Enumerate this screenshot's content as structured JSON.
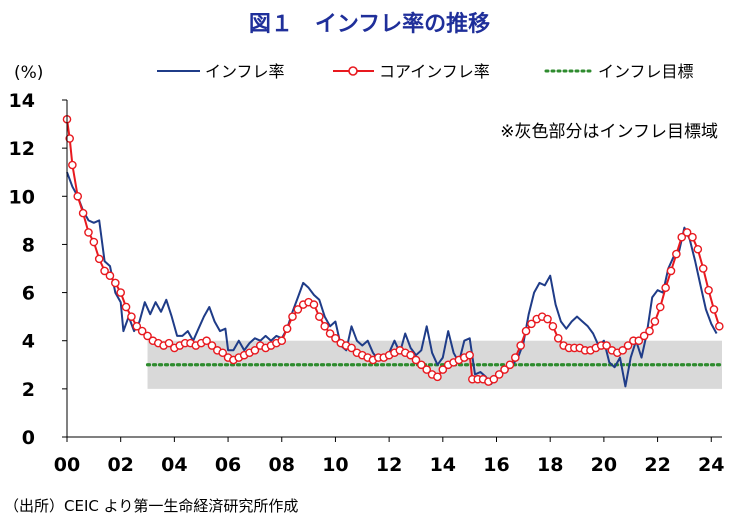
{
  "title": "図１　インフレ率の推移",
  "source": "（出所）CEIC より第一生命経済研究所作成",
  "note": "※灰色部分はインフレ目標域",
  "colors": {
    "headline": "#1f3c88",
    "core": "#e8191f",
    "target": "#2e8b2e",
    "band": "#d9d9d9",
    "title": "#1f2f9a"
  },
  "chart_data": {
    "type": "line",
    "ylabel": "(%)",
    "ylim": [
      0,
      14
    ],
    "yticks": [
      0,
      2,
      4,
      6,
      8,
      10,
      12,
      14
    ],
    "xlim": [
      2000,
      2024.4
    ],
    "xticks": [
      {
        "x": 2000,
        "label": "00"
      },
      {
        "x": 2002,
        "label": "02"
      },
      {
        "x": 2004,
        "label": "04"
      },
      {
        "x": 2006,
        "label": "06"
      },
      {
        "x": 2008,
        "label": "08"
      },
      {
        "x": 2010,
        "label": "10"
      },
      {
        "x": 2012,
        "label": "12"
      },
      {
        "x": 2014,
        "label": "14"
      },
      {
        "x": 2016,
        "label": "16"
      },
      {
        "x": 2018,
        "label": "18"
      },
      {
        "x": 2020,
        "label": "20"
      },
      {
        "x": 2022,
        "label": "22"
      },
      {
        "x": 2024,
        "label": "24"
      }
    ],
    "target_band": {
      "from": 2003.0,
      "to": 2024.4,
      "low": 2,
      "high": 4
    },
    "target_line": {
      "from": 2003.0,
      "to": 2024.4,
      "value": 3
    },
    "legend": [
      "インフレ率",
      "コアインフレ率",
      "インフレ目標"
    ],
    "series": [
      {
        "name": "インフレ率",
        "style": "line",
        "points": [
          [
            2000.0,
            11.0
          ],
          [
            2000.2,
            10.4
          ],
          [
            2000.4,
            10.0
          ],
          [
            2000.6,
            9.4
          ],
          [
            2000.8,
            9.0
          ],
          [
            2001.0,
            8.9
          ],
          [
            2001.2,
            9.0
          ],
          [
            2001.4,
            7.3
          ],
          [
            2001.6,
            7.1
          ],
          [
            2001.8,
            6.0
          ],
          [
            2002.0,
            5.6
          ],
          [
            2002.1,
            4.4
          ],
          [
            2002.3,
            5.0
          ],
          [
            2002.5,
            4.4
          ],
          [
            2002.7,
            4.8
          ],
          [
            2002.9,
            5.6
          ],
          [
            2003.1,
            5.1
          ],
          [
            2003.3,
            5.6
          ],
          [
            2003.5,
            5.2
          ],
          [
            2003.7,
            5.7
          ],
          [
            2003.9,
            5.0
          ],
          [
            2004.1,
            4.2
          ],
          [
            2004.3,
            4.2
          ],
          [
            2004.5,
            4.4
          ],
          [
            2004.7,
            4.0
          ],
          [
            2004.9,
            4.5
          ],
          [
            2005.1,
            5.0
          ],
          [
            2005.3,
            5.4
          ],
          [
            2005.5,
            4.8
          ],
          [
            2005.7,
            4.4
          ],
          [
            2005.9,
            4.5
          ],
          [
            2006.0,
            3.6
          ],
          [
            2006.2,
            3.6
          ],
          [
            2006.4,
            4.0
          ],
          [
            2006.6,
            3.6
          ],
          [
            2006.8,
            3.9
          ],
          [
            2007.0,
            4.1
          ],
          [
            2007.2,
            4.0
          ],
          [
            2007.4,
            4.2
          ],
          [
            2007.6,
            4.0
          ],
          [
            2007.8,
            4.2
          ],
          [
            2008.0,
            4.1
          ],
          [
            2008.2,
            4.5
          ],
          [
            2008.4,
            5.2
          ],
          [
            2008.6,
            5.8
          ],
          [
            2008.8,
            6.4
          ],
          [
            2009.0,
            6.2
          ],
          [
            2009.2,
            5.9
          ],
          [
            2009.4,
            5.7
          ],
          [
            2009.6,
            5.0
          ],
          [
            2009.8,
            4.6
          ],
          [
            2010.0,
            4.8
          ],
          [
            2010.2,
            3.8
          ],
          [
            2010.4,
            3.6
          ],
          [
            2010.6,
            4.6
          ],
          [
            2010.8,
            4.0
          ],
          [
            2011.0,
            3.8
          ],
          [
            2011.2,
            4.0
          ],
          [
            2011.4,
            3.5
          ],
          [
            2011.6,
            3.2
          ],
          [
            2011.8,
            3.3
          ],
          [
            2012.0,
            3.5
          ],
          [
            2012.2,
            4.0
          ],
          [
            2012.4,
            3.5
          ],
          [
            2012.6,
            4.3
          ],
          [
            2012.8,
            3.7
          ],
          [
            2013.0,
            3.4
          ],
          [
            2013.2,
            3.6
          ],
          [
            2013.4,
            4.6
          ],
          [
            2013.6,
            3.5
          ],
          [
            2013.8,
            3.0
          ],
          [
            2014.0,
            3.3
          ],
          [
            2014.2,
            4.4
          ],
          [
            2014.4,
            3.5
          ],
          [
            2014.6,
            3.1
          ],
          [
            2014.8,
            4.0
          ],
          [
            2015.0,
            4.1
          ],
          [
            2015.2,
            2.6
          ],
          [
            2015.4,
            2.7
          ],
          [
            2015.6,
            2.5
          ],
          [
            2015.8,
            2.2
          ],
          [
            2016.0,
            2.5
          ],
          [
            2016.2,
            2.7
          ],
          [
            2016.4,
            2.8
          ],
          [
            2016.6,
            3.0
          ],
          [
            2016.8,
            3.3
          ],
          [
            2017.0,
            3.9
          ],
          [
            2017.2,
            5.1
          ],
          [
            2017.4,
            6.0
          ],
          [
            2017.6,
            6.4
          ],
          [
            2017.8,
            6.3
          ],
          [
            2018.0,
            6.7
          ],
          [
            2018.2,
            5.5
          ],
          [
            2018.4,
            4.8
          ],
          [
            2018.6,
            4.5
          ],
          [
            2018.8,
            4.8
          ],
          [
            2019.0,
            5.0
          ],
          [
            2019.2,
            4.8
          ],
          [
            2019.4,
            4.6
          ],
          [
            2019.6,
            4.3
          ],
          [
            2019.8,
            3.8
          ],
          [
            2020.0,
            4.0
          ],
          [
            2020.2,
            3.1
          ],
          [
            2020.4,
            2.9
          ],
          [
            2020.6,
            3.3
          ],
          [
            2020.8,
            2.1
          ],
          [
            2021.0,
            3.3
          ],
          [
            2021.2,
            4.0
          ],
          [
            2021.4,
            3.3
          ],
          [
            2021.6,
            4.3
          ],
          [
            2021.8,
            5.8
          ],
          [
            2022.0,
            6.1
          ],
          [
            2022.2,
            6.0
          ],
          [
            2022.4,
            7.0
          ],
          [
            2022.6,
            7.5
          ],
          [
            2022.8,
            7.7
          ],
          [
            2023.0,
            8.7
          ],
          [
            2023.2,
            8.2
          ],
          [
            2023.4,
            7.3
          ],
          [
            2023.6,
            6.3
          ],
          [
            2023.8,
            5.3
          ],
          [
            2024.0,
            4.7
          ],
          [
            2024.2,
            4.3
          ]
        ]
      },
      {
        "name": "コアインフレ率",
        "style": "line-markers",
        "points": [
          [
            2000.0,
            13.2
          ],
          [
            2000.1,
            12.4
          ],
          [
            2000.2,
            11.3
          ],
          [
            2000.4,
            10.0
          ],
          [
            2000.6,
            9.3
          ],
          [
            2000.8,
            8.5
          ],
          [
            2001.0,
            8.1
          ],
          [
            2001.2,
            7.4
          ],
          [
            2001.4,
            6.9
          ],
          [
            2001.6,
            6.7
          ],
          [
            2001.8,
            6.4
          ],
          [
            2002.0,
            6.0
          ],
          [
            2002.2,
            5.4
          ],
          [
            2002.4,
            5.0
          ],
          [
            2002.6,
            4.6
          ],
          [
            2002.8,
            4.4
          ],
          [
            2003.0,
            4.2
          ],
          [
            2003.2,
            4.0
          ],
          [
            2003.4,
            3.9
          ],
          [
            2003.6,
            3.8
          ],
          [
            2003.8,
            3.9
          ],
          [
            2004.0,
            3.7
          ],
          [
            2004.2,
            3.8
          ],
          [
            2004.4,
            3.9
          ],
          [
            2004.6,
            3.9
          ],
          [
            2004.8,
            3.8
          ],
          [
            2005.0,
            3.9
          ],
          [
            2005.2,
            4.0
          ],
          [
            2005.4,
            3.8
          ],
          [
            2005.6,
            3.6
          ],
          [
            2005.8,
            3.5
          ],
          [
            2006.0,
            3.3
          ],
          [
            2006.2,
            3.2
          ],
          [
            2006.4,
            3.3
          ],
          [
            2006.6,
            3.4
          ],
          [
            2006.8,
            3.5
          ],
          [
            2007.0,
            3.6
          ],
          [
            2007.2,
            3.8
          ],
          [
            2007.4,
            3.7
          ],
          [
            2007.6,
            3.8
          ],
          [
            2007.8,
            3.9
          ],
          [
            2008.0,
            4.0
          ],
          [
            2008.2,
            4.5
          ],
          [
            2008.4,
            5.0
          ],
          [
            2008.6,
            5.3
          ],
          [
            2008.8,
            5.5
          ],
          [
            2009.0,
            5.6
          ],
          [
            2009.2,
            5.5
          ],
          [
            2009.4,
            5.0
          ],
          [
            2009.6,
            4.6
          ],
          [
            2009.8,
            4.3
          ],
          [
            2010.0,
            4.1
          ],
          [
            2010.2,
            3.9
          ],
          [
            2010.4,
            3.8
          ],
          [
            2010.6,
            3.7
          ],
          [
            2010.8,
            3.5
          ],
          [
            2011.0,
            3.4
          ],
          [
            2011.2,
            3.3
          ],
          [
            2011.4,
            3.2
          ],
          [
            2011.6,
            3.3
          ],
          [
            2011.8,
            3.3
          ],
          [
            2012.0,
            3.4
          ],
          [
            2012.2,
            3.5
          ],
          [
            2012.4,
            3.6
          ],
          [
            2012.6,
            3.5
          ],
          [
            2012.8,
            3.4
          ],
          [
            2013.0,
            3.2
          ],
          [
            2013.2,
            3.0
          ],
          [
            2013.4,
            2.8
          ],
          [
            2013.6,
            2.6
          ],
          [
            2013.8,
            2.5
          ],
          [
            2014.0,
            2.8
          ],
          [
            2014.2,
            3.0
          ],
          [
            2014.4,
            3.1
          ],
          [
            2014.6,
            3.2
          ],
          [
            2014.8,
            3.3
          ],
          [
            2015.0,
            3.4
          ],
          [
            2015.1,
            2.4
          ],
          [
            2015.3,
            2.4
          ],
          [
            2015.5,
            2.4
          ],
          [
            2015.7,
            2.3
          ],
          [
            2015.9,
            2.4
          ],
          [
            2016.1,
            2.6
          ],
          [
            2016.3,
            2.8
          ],
          [
            2016.5,
            3.0
          ],
          [
            2016.7,
            3.3
          ],
          [
            2016.9,
            3.8
          ],
          [
            2017.1,
            4.4
          ],
          [
            2017.3,
            4.7
          ],
          [
            2017.5,
            4.9
          ],
          [
            2017.7,
            5.0
          ],
          [
            2017.9,
            4.9
          ],
          [
            2018.1,
            4.6
          ],
          [
            2018.3,
            4.1
          ],
          [
            2018.5,
            3.8
          ],
          [
            2018.7,
            3.7
          ],
          [
            2018.9,
            3.7
          ],
          [
            2019.1,
            3.7
          ],
          [
            2019.3,
            3.6
          ],
          [
            2019.5,
            3.6
          ],
          [
            2019.7,
            3.7
          ],
          [
            2019.9,
            3.8
          ],
          [
            2020.1,
            3.8
          ],
          [
            2020.3,
            3.6
          ],
          [
            2020.5,
            3.5
          ],
          [
            2020.7,
            3.6
          ],
          [
            2020.9,
            3.8
          ],
          [
            2021.1,
            4.0
          ],
          [
            2021.3,
            4.0
          ],
          [
            2021.5,
            4.2
          ],
          [
            2021.7,
            4.4
          ],
          [
            2021.9,
            4.8
          ],
          [
            2022.1,
            5.4
          ],
          [
            2022.3,
            6.2
          ],
          [
            2022.5,
            6.9
          ],
          [
            2022.7,
            7.6
          ],
          [
            2022.9,
            8.3
          ],
          [
            2023.1,
            8.5
          ],
          [
            2023.3,
            8.3
          ],
          [
            2023.5,
            7.8
          ],
          [
            2023.7,
            7.0
          ],
          [
            2023.9,
            6.1
          ],
          [
            2024.1,
            5.3
          ],
          [
            2024.3,
            4.6
          ]
        ]
      }
    ]
  }
}
